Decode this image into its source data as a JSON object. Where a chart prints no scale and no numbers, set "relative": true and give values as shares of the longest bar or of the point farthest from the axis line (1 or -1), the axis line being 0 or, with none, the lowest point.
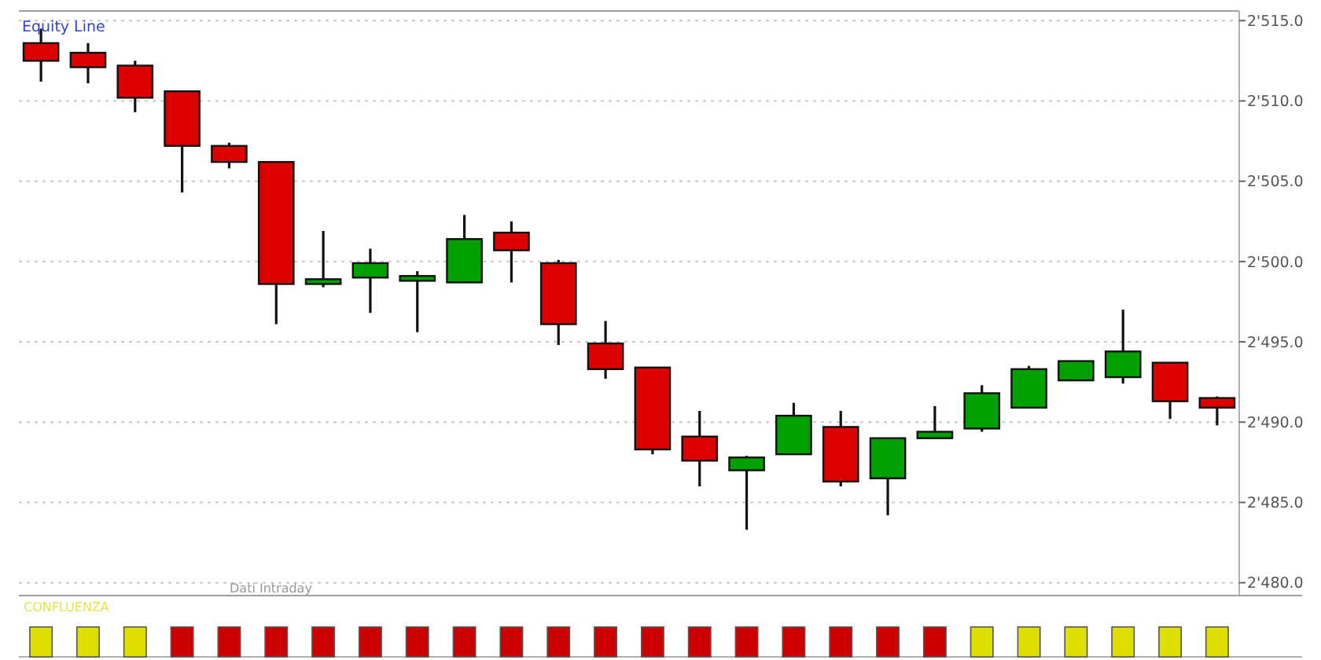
{
  "chart_data": [
    {
      "type": "candlestick",
      "categories": [
        null,
        null,
        null,
        null,
        null,
        null,
        null,
        null,
        null,
        null,
        null,
        null,
        null,
        null,
        null,
        null,
        null,
        null,
        null,
        null,
        null,
        null,
        null,
        null,
        null,
        null
      ],
      "ohlc": [
        [
          2513.6,
          2514.5,
          2511.2,
          2512.5
        ],
        [
          2513.0,
          2513.6,
          2511.1,
          2512.1
        ],
        [
          2512.2,
          2512.5,
          2509.3,
          2510.2
        ],
        [
          2510.6,
          2510.6,
          2504.3,
          2507.2
        ],
        [
          2507.2,
          2507.4,
          2505.8,
          2506.2
        ],
        [
          2506.2,
          2506.2,
          2496.1,
          2498.6
        ],
        [
          2498.6,
          2501.9,
          2498.4,
          2498.9
        ],
        [
          2499.0,
          2500.8,
          2496.8,
          2499.9
        ],
        [
          2498.8,
          2499.4,
          2495.6,
          2499.1
        ],
        [
          2498.7,
          2502.9,
          2498.7,
          2501.4
        ],
        [
          2501.8,
          2502.5,
          2498.7,
          2500.7
        ],
        [
          2499.9,
          2500.1,
          2494.8,
          2496.1
        ],
        [
          2494.9,
          2496.3,
          2492.7,
          2493.3
        ],
        [
          2493.4,
          2493.4,
          2488.0,
          2488.3
        ],
        [
          2489.1,
          2490.7,
          2486.0,
          2487.6
        ],
        [
          2487.0,
          2487.9,
          2483.3,
          2487.8
        ],
        [
          2488.0,
          2491.2,
          2488.0,
          2490.4
        ],
        [
          2489.7,
          2490.7,
          2486.0,
          2486.3
        ],
        [
          2486.5,
          2489.0,
          2484.2,
          2489.0
        ],
        [
          2489.0,
          2491.0,
          2489.0,
          2489.4
        ],
        [
          2489.6,
          2492.3,
          2489.4,
          2491.8
        ],
        [
          2490.9,
          2493.5,
          2490.9,
          2493.3
        ],
        [
          2492.6,
          2493.8,
          2492.6,
          2493.8
        ],
        [
          2492.8,
          2497.0,
          2492.4,
          2494.4
        ],
        [
          2493.7,
          2493.7,
          2490.2,
          2491.3
        ],
        [
          2491.5,
          2491.6,
          2489.8,
          2490.9
        ]
      ],
      "colors": [
        "#dd0000",
        "#dd0000",
        "#dd0000",
        "#dd0000",
        "#dd0000",
        "#dd0000",
        "#00a000",
        "#00a000",
        "#00a000",
        "#00a000",
        "#dd0000",
        "#dd0000",
        "#dd0000",
        "#dd0000",
        "#dd0000",
        "#00a000",
        "#00a000",
        "#dd0000",
        "#00a000",
        "#00a000",
        "#00a000",
        "#00a000",
        "#00a000",
        "#00a000",
        "#dd0000",
        "#dd0000"
      ],
      "ylim": [
        2479.2,
        2515.6
      ],
      "yticks": [
        {
          "value": 2480,
          "label": "2'480.0"
        },
        {
          "value": 2485,
          "label": "2'485.0"
        },
        {
          "value": 2490,
          "label": "2'490.0"
        },
        {
          "value": 2495,
          "label": "2'495.0"
        },
        {
          "value": 2500,
          "label": "2'500.0"
        },
        {
          "value": 2505,
          "label": "2'505.0"
        },
        {
          "value": 2510,
          "label": "2'510.0"
        },
        {
          "value": 2515,
          "label": "2'515.0"
        }
      ],
      "grid": "y",
      "tick_labels": "y",
      "annotations": [
        "Equity Line",
        "Dati Intraday"
      ]
    },
    {
      "type": "bar",
      "title": "CONFLUENZA",
      "categories": [
        null,
        null,
        null,
        null,
        null,
        null,
        null,
        null,
        null,
        null,
        null,
        null,
        null,
        null,
        null,
        null,
        null,
        null,
        null,
        null,
        null,
        null,
        null,
        null,
        null,
        null
      ],
      "values": [
        1,
        1,
        1,
        1,
        1,
        1,
        1,
        1,
        1,
        1,
        1,
        1,
        1,
        1,
        1,
        1,
        1,
        1,
        1,
        1,
        1,
        1,
        1,
        1,
        1,
        1
      ],
      "colors": [
        "#e0e000",
        "#e0e000",
        "#e0e000",
        "#cc0000",
        "#cc0000",
        "#cc0000",
        "#cc0000",
        "#cc0000",
        "#cc0000",
        "#cc0000",
        "#cc0000",
        "#cc0000",
        "#cc0000",
        "#cc0000",
        "#cc0000",
        "#cc0000",
        "#cc0000",
        "#cc0000",
        "#cc0000",
        "#cc0000",
        "#e0e000",
        "#e0e000",
        "#e0e000",
        "#e0e000",
        "#e0e000",
        "#e0e000"
      ],
      "relative": true
    }
  ]
}
